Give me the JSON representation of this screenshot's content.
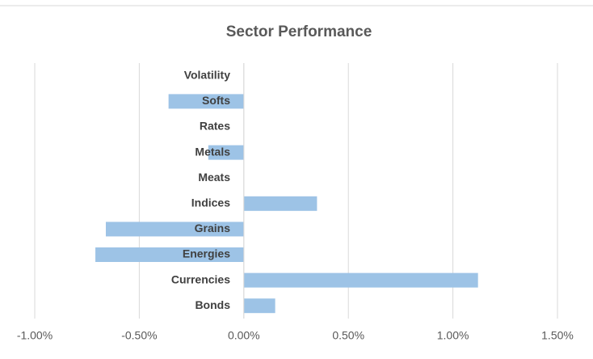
{
  "chart_data": {
    "type": "bar",
    "orientation": "horizontal",
    "title": "Sector Performance",
    "categories": [
      "Bonds",
      "Currencies",
      "Energies",
      "Grains",
      "Indices",
      "Meats",
      "Metals",
      "Rates",
      "Softs",
      "Volatility"
    ],
    "values": [
      0.15,
      1.12,
      -0.71,
      -0.66,
      0.35,
      0,
      -0.17,
      0,
      -0.36,
      0
    ],
    "color": "#9dc3e6",
    "xlim": [
      -1,
      1.5
    ],
    "xticks": [
      {
        "value": -1,
        "label": "-1.00%"
      },
      {
        "value": -0.5,
        "label": "-0.50%"
      },
      {
        "value": 0,
        "label": "0.00%"
      },
      {
        "value": 0.5,
        "label": "0.50%"
      },
      {
        "value": 1,
        "label": "1.00%"
      },
      {
        "value": 1.5,
        "label": "1.50%"
      }
    ],
    "grid": true
  }
}
